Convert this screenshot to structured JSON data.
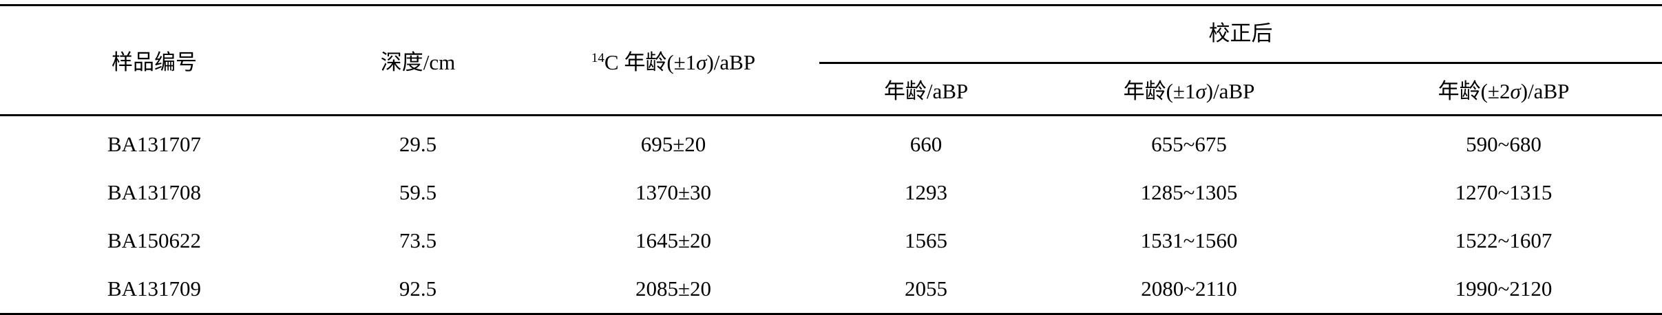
{
  "table": {
    "headers": {
      "sample_id": "样品编号",
      "depth": "深度/cm",
      "c14_age_sup": "14",
      "c14_age": "C 年龄(±1σ)/aBP",
      "calibrated_group": "校正后",
      "cal_age": "年龄/aBP",
      "cal_age_1s": "年龄(±1σ)/aBP",
      "cal_age_2s": "年龄(±2σ)/aBP"
    },
    "rows": [
      {
        "sample_id": "BA131707",
        "depth": "29.5",
        "c14_age": "695±20",
        "cal_age": "660",
        "cal_age_1s": "655~675",
        "cal_age_2s": "590~680"
      },
      {
        "sample_id": "BA131708",
        "depth": "59.5",
        "c14_age": "1370±30",
        "cal_age": "1293",
        "cal_age_1s": "1285~1305",
        "cal_age_2s": "1270~1315"
      },
      {
        "sample_id": "BA150622",
        "depth": "73.5",
        "c14_age": "1645±20",
        "cal_age": "1565",
        "cal_age_1s": "1531~1560",
        "cal_age_2s": "1522~1607"
      },
      {
        "sample_id": "BA131709",
        "depth": "92.5",
        "c14_age": "2085±20",
        "cal_age": "2055",
        "cal_age_1s": "2080~2110",
        "cal_age_2s": "1990~2120"
      }
    ]
  }
}
